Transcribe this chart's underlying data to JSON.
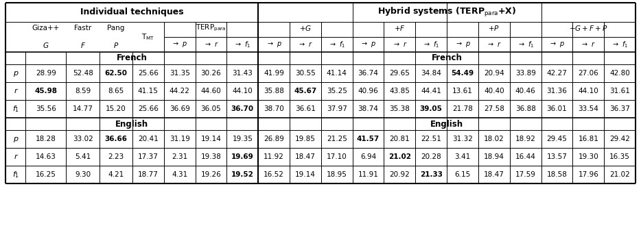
{
  "french_data": [
    [
      "28.99",
      "52.48",
      "62.50",
      "25.66",
      "31.35",
      "30.26",
      "31.43",
      "41.99",
      "30.55",
      "41.14",
      "36.74",
      "29.65",
      "34.84",
      "54.49",
      "20.94",
      "33.89",
      "42.27",
      "27.06",
      "42.80"
    ],
    [
      "45.98",
      "8.59",
      "8.65",
      "41.15",
      "44.22",
      "44.60",
      "44.10",
      "35.88",
      "45.67",
      "35.25",
      "40.96",
      "43.85",
      "44.41",
      "13.61",
      "40.40",
      "40.46",
      "31.36",
      "44.10",
      "31.61"
    ],
    [
      "35.56",
      "14.77",
      "15.20",
      "25.66",
      "36.69",
      "36.05",
      "36.70",
      "38.70",
      "36.61",
      "37.97",
      "38.74",
      "35.38",
      "39.05",
      "21.78",
      "27.58",
      "36.88",
      "36.01",
      "33.54",
      "36.37"
    ]
  ],
  "english_data": [
    [
      "18.28",
      "33.02",
      "36.66",
      "20.41",
      "31.19",
      "19.14",
      "19.35",
      "26.89",
      "19.85",
      "21.25",
      "41.57",
      "20.81",
      "22.51",
      "31.32",
      "18.02",
      "18.92",
      "29.45",
      "16.81",
      "29.42"
    ],
    [
      "14.63",
      "5.41",
      "2.23",
      "17.37",
      "2.31",
      "19.38",
      "19.69",
      "11.92",
      "18.47",
      "17.10",
      "6.94",
      "21.02",
      "20.28",
      "3.41",
      "18.94",
      "16.44",
      "13.57",
      "19.30",
      "16.35"
    ],
    [
      "16.25",
      "9.30",
      "4.21",
      "18.77",
      "4.31",
      "19.26",
      "19.52",
      "16.52",
      "19.14",
      "18.95",
      "11.91",
      "20.92",
      "21.33",
      "6.15",
      "18.47",
      "17.59",
      "18.58",
      "17.96",
      "21.02"
    ]
  ],
  "french_bold_left": {
    "0": [
      "62.50"
    ],
    "1": [
      "45.98"
    ],
    "2": [
      "36.70"
    ]
  },
  "french_bold_right": {
    "0": [
      "54.49"
    ],
    "1": [
      "45.67"
    ],
    "2": [
      "39.05"
    ]
  },
  "english_bold_left": {
    "0": [
      "36.66"
    ],
    "1": [
      "19.69"
    ],
    "2": [
      "19.52"
    ]
  },
  "english_bold_right": {
    "0": [
      "41.57"
    ],
    "1": [
      "21.02"
    ],
    "2": [
      "21.33"
    ]
  }
}
